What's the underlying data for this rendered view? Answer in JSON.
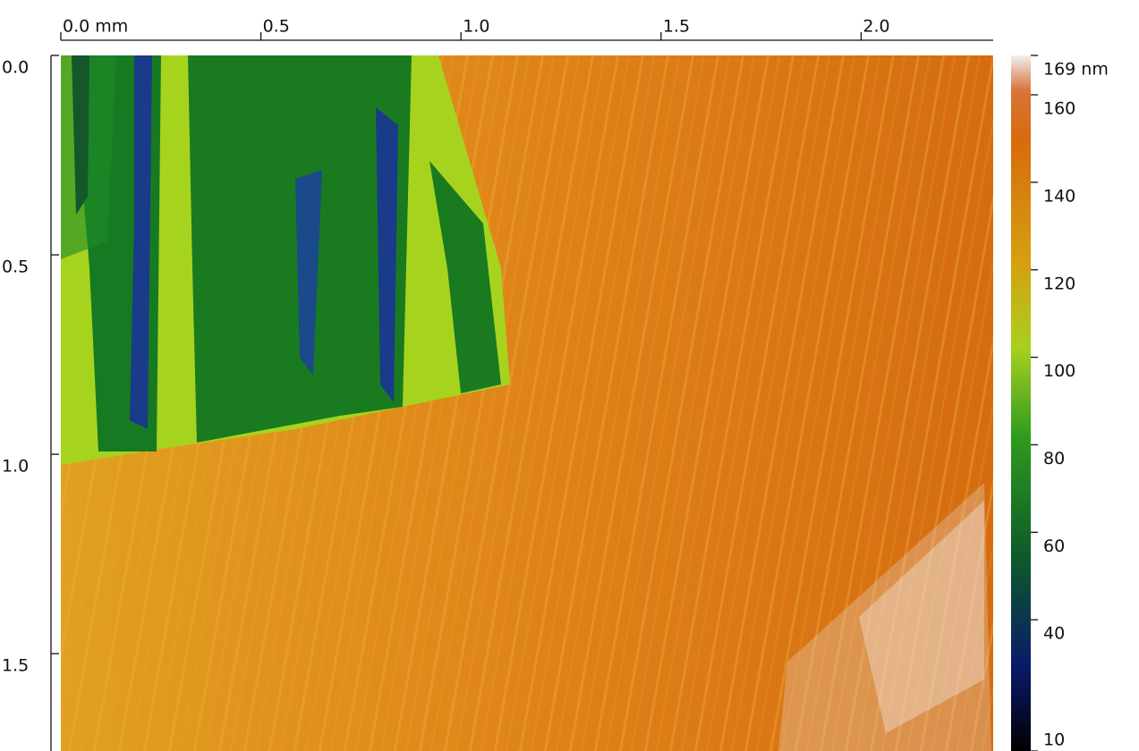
{
  "chart_data": {
    "type": "image",
    "xlim": [
      0,
      2.33
    ],
    "xticks": [
      {
        "value": 0,
        "label": "0.0 mm"
      },
      0.5,
      {
        "value": 1,
        "label": "1.0"
      },
      1.5,
      {
        "value": 2,
        "label": "2.0"
      }
    ],
    "ylim": [
      0,
      1.744
    ],
    "yticks": [
      {
        "value": 0,
        "label": "0.0"
      },
      0.5,
      {
        "value": 1,
        "label": "1.0"
      },
      1.5
    ],
    "colorbar": {
      "lim": [
        10,
        169
      ],
      "ticks": [
        {
          "value": 169,
          "label": "169 nm"
        },
        160,
        140,
        120,
        100,
        80,
        60,
        40,
        10
      ]
    }
  }
}
